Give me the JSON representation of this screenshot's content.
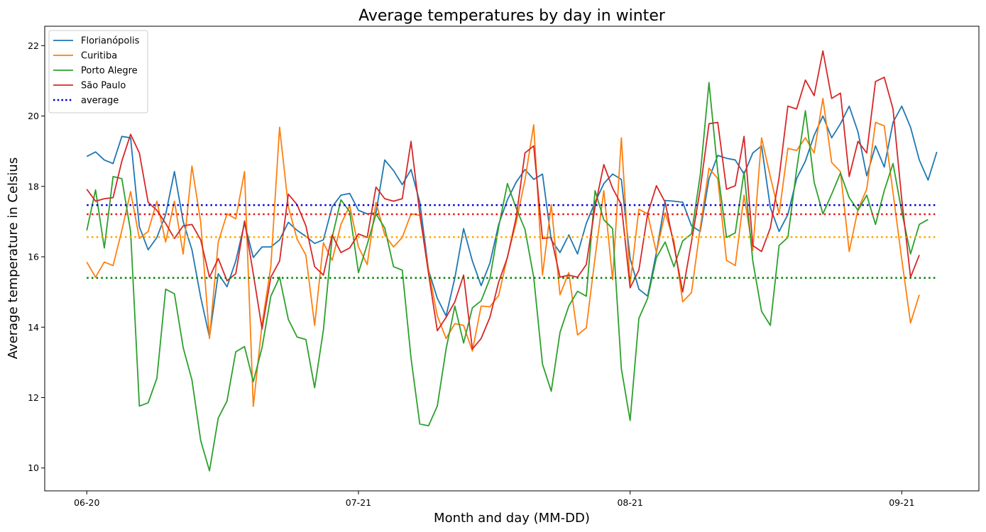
{
  "chart_data": {
    "type": "line",
    "title": "Average temperatures by day in winter",
    "xlabel": "Month and day (MM-DD)",
    "ylabel": "Average temperature in Celsius",
    "xlim": [
      -4.8,
      101.8
    ],
    "ylim": [
      9.35,
      22.55
    ],
    "y_ticks": [
      10,
      12,
      14,
      16,
      18,
      20,
      22
    ],
    "x_ticks": [
      {
        "x": 0,
        "label": "06-20"
      },
      {
        "x": 31,
        "label": "07-21"
      },
      {
        "x": 62,
        "label": "08-21"
      },
      {
        "x": 93,
        "label": "09-21"
      }
    ],
    "legend_position": "upper-left",
    "grid": false,
    "series": [
      {
        "name": "Florianópolis",
        "color": "#1f77b4",
        "style": "solid",
        "values": [
          18.85,
          18.98,
          18.75,
          18.65,
          19.42,
          19.38,
          16.85,
          16.2,
          16.55,
          17.2,
          18.42,
          17.0,
          16.2,
          14.85,
          13.72,
          15.52,
          15.15,
          15.88,
          16.95,
          15.98,
          16.28,
          16.28,
          16.48,
          16.98,
          16.75,
          16.58,
          16.38,
          16.48,
          17.42,
          17.75,
          17.8,
          17.32,
          17.22,
          17.25,
          18.75,
          18.45,
          18.05,
          18.48,
          17.55,
          15.62,
          14.82,
          14.32,
          15.4,
          16.8,
          15.88,
          15.18,
          15.82,
          16.92,
          17.62,
          18.12,
          18.48,
          18.2,
          18.35,
          16.48,
          16.12,
          16.62,
          16.08,
          16.95,
          17.55,
          18.08,
          18.35,
          18.2,
          15.95,
          15.08,
          14.88,
          16.12,
          17.6,
          17.58,
          17.55,
          16.88,
          16.72,
          18.22,
          18.88,
          18.8,
          18.75,
          18.35,
          18.95,
          19.15,
          17.4,
          16.72,
          17.2,
          18.22,
          18.72,
          19.45,
          20.0,
          19.38,
          19.78,
          20.28,
          19.55,
          18.3,
          19.15,
          18.55,
          19.82,
          20.28,
          19.68,
          18.75,
          18.18,
          18.98
        ]
      },
      {
        "name": "Curitiba",
        "color": "#ff7f0e",
        "style": "solid",
        "values": [
          15.85,
          15.42,
          15.85,
          15.75,
          16.75,
          17.85,
          16.52,
          16.72,
          17.58,
          16.42,
          17.58,
          16.08,
          18.58,
          16.98,
          13.68,
          16.42,
          17.22,
          17.08,
          18.42,
          11.75,
          14.08,
          15.72,
          19.68,
          17.42,
          16.5,
          16.05,
          14.05,
          16.4,
          15.9,
          16.92,
          17.45,
          16.28,
          15.78,
          17.55,
          16.62,
          16.28,
          16.55,
          17.22,
          17.18,
          15.62,
          14.32,
          13.68,
          14.1,
          14.05,
          13.32,
          14.6,
          14.58,
          14.9,
          16.0,
          16.98,
          18.18,
          19.75,
          15.48,
          17.48,
          14.92,
          15.55,
          13.78,
          13.98,
          15.98,
          17.88,
          15.35,
          19.38,
          15.22,
          17.35,
          17.22,
          16.12,
          17.25,
          16.45,
          14.72,
          14.98,
          16.82,
          18.52,
          18.22,
          15.9,
          15.75,
          17.75,
          16.18,
          19.38,
          18.28,
          17.22,
          19.08,
          19.02,
          19.38,
          18.95,
          20.5,
          18.68,
          18.42,
          16.15,
          17.35,
          17.92,
          19.82,
          19.72,
          17.82,
          15.92,
          14.12,
          14.92
        ]
      },
      {
        "name": "Porto Alegre",
        "color": "#2ca02c",
        "style": "solid",
        "values": [
          16.75,
          17.9,
          16.25,
          18.28,
          18.22,
          16.72,
          11.76,
          11.85,
          12.55,
          15.08,
          14.95,
          13.42,
          12.5,
          10.78,
          9.92,
          11.42,
          11.9,
          13.3,
          13.45,
          12.45,
          13.42,
          14.88,
          15.42,
          14.22,
          13.72,
          13.65,
          12.28,
          13.92,
          16.55,
          17.62,
          17.28,
          15.55,
          16.35,
          17.22,
          16.82,
          15.72,
          15.62,
          13.12,
          11.25,
          11.2,
          11.76,
          13.38,
          14.6,
          13.55,
          14.55,
          14.75,
          15.38,
          16.85,
          18.08,
          17.38,
          16.78,
          15.42,
          12.95,
          12.18,
          13.85,
          14.6,
          15.02,
          14.88,
          17.88,
          17.05,
          16.8,
          12.82,
          11.35,
          14.25,
          14.82,
          15.98,
          16.42,
          15.72,
          16.45,
          16.65,
          18.32,
          20.95,
          18.42,
          16.55,
          16.68,
          18.42,
          15.88,
          14.45,
          14.05,
          16.32,
          16.55,
          18.48,
          20.15,
          18.12,
          17.22,
          17.78,
          18.38,
          17.68,
          17.32,
          17.75,
          16.92,
          17.88,
          18.65,
          17.28,
          16.08,
          16.92,
          17.06
        ]
      },
      {
        "name": "São Paulo",
        "color": "#d62728",
        "style": "solid",
        "values": [
          17.92,
          17.58,
          17.65,
          17.68,
          18.72,
          19.48,
          18.95,
          17.55,
          17.32,
          16.95,
          16.52,
          16.88,
          16.92,
          16.48,
          15.42,
          15.95,
          15.32,
          15.52,
          17.02,
          15.52,
          13.95,
          15.42,
          15.88,
          17.78,
          17.48,
          16.88,
          15.72,
          15.48,
          16.62,
          16.12,
          16.25,
          16.65,
          16.55,
          17.98,
          17.65,
          17.58,
          17.65,
          19.28,
          17.22,
          15.52,
          13.9,
          14.28,
          14.72,
          15.48,
          13.38,
          13.68,
          14.28,
          15.28,
          15.98,
          17.12,
          18.95,
          19.15,
          16.52,
          16.55,
          15.42,
          15.48,
          15.42,
          15.78,
          17.42,
          18.62,
          17.95,
          17.48,
          15.12,
          15.62,
          17.22,
          18.02,
          17.55,
          16.32,
          15.0,
          16.42,
          17.92,
          19.78,
          19.82,
          17.92,
          18.02,
          19.42,
          16.32,
          16.15,
          16.82,
          18.25,
          20.28,
          20.2,
          21.02,
          20.58,
          21.85,
          20.5,
          20.65,
          18.28,
          19.28,
          18.95,
          20.98,
          21.1,
          20.2,
          17.62,
          15.42,
          16.05
        ]
      }
    ],
    "reference_lines": [
      {
        "name": "average",
        "color": "#0000cc",
        "style": "dotted",
        "value": 17.47
      },
      {
        "color": "#ee1111",
        "style": "dotted",
        "value": 17.21
      },
      {
        "color": "#ffa500",
        "style": "dotted",
        "value": 16.56
      },
      {
        "color": "#008000",
        "style": "dotted",
        "value": 15.4
      }
    ]
  }
}
